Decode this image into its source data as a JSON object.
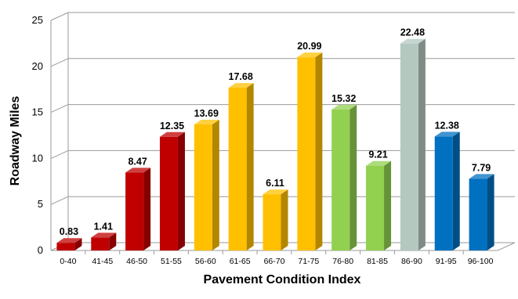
{
  "chart_data": {
    "type": "bar",
    "title": "",
    "xlabel": "Pavement Condition Index",
    "ylabel": "Roadway Miles",
    "ylim": [
      0,
      25
    ],
    "yticks": [
      0,
      5,
      10,
      15,
      20,
      25
    ],
    "grid": true,
    "legend": "none",
    "categories": [
      "0-40",
      "41-45",
      "46-50",
      "51-55",
      "56-60",
      "61-65",
      "66-70",
      "71-75",
      "76-80",
      "81-85",
      "86-90",
      "91-95",
      "96-100"
    ],
    "values": [
      0.83,
      1.41,
      8.47,
      12.35,
      13.69,
      17.68,
      6.11,
      20.99,
      15.32,
      9.21,
      22.48,
      12.38,
      7.79
    ],
    "data_labels": [
      "0.83",
      "1.41",
      "8.47",
      "12.35",
      "13.69",
      "17.68",
      "6.11",
      "20.99",
      "15.32",
      "9.21",
      "22.48",
      "12.38",
      "7.79"
    ],
    "bar_colors": [
      "#c00000",
      "#c00000",
      "#c00000",
      "#c00000",
      "#ffc000",
      "#ffc000",
      "#ffc000",
      "#ffc000",
      "#92d050",
      "#92d050",
      "#b4c8c0",
      "#0070c0",
      "#0070c0"
    ]
  }
}
